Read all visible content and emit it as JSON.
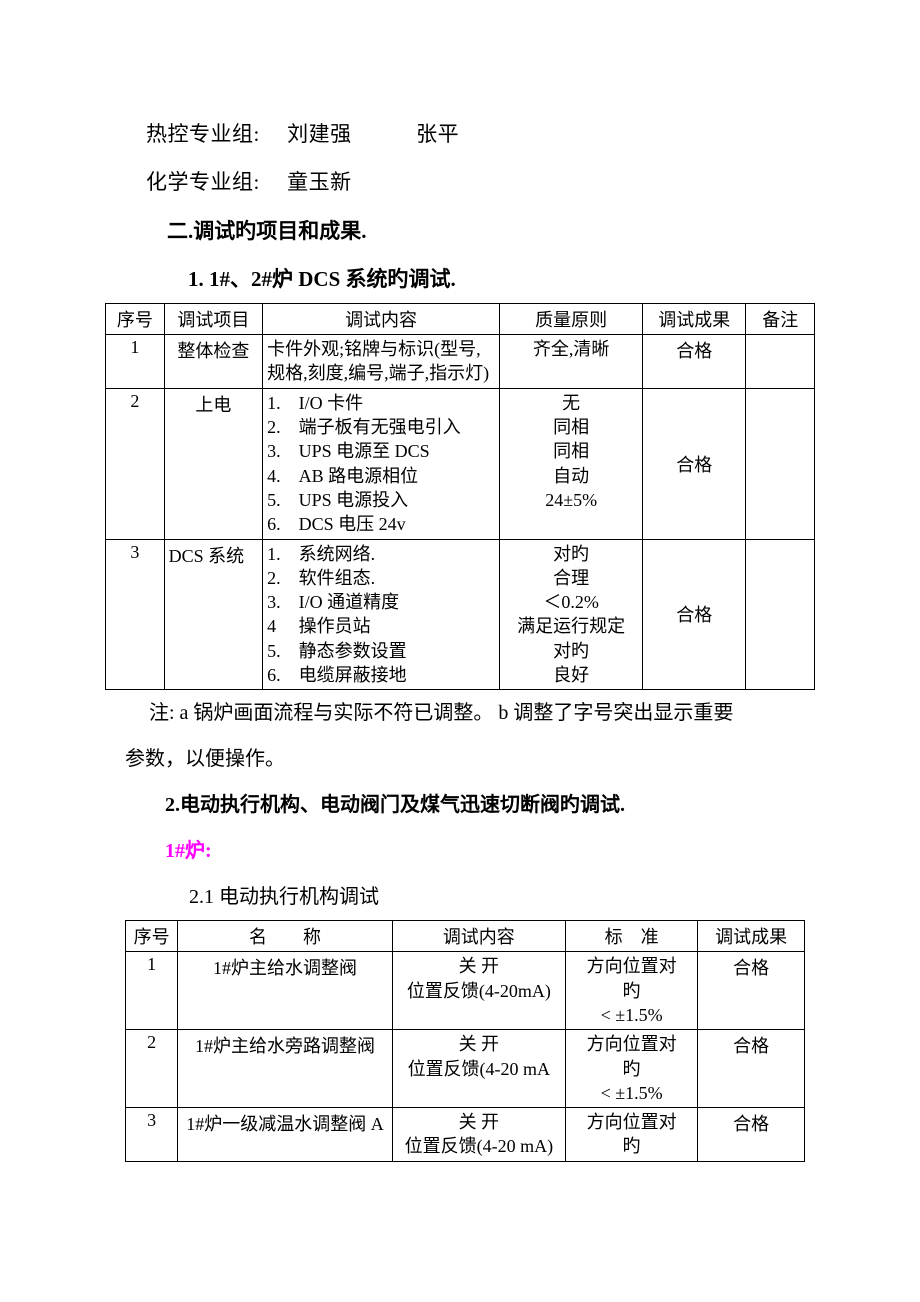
{
  "fonts": {
    "body_pt": 21,
    "table_pt": 18
  },
  "colors": {
    "text": "#000000",
    "bg": "#ffffff",
    "border": "#000000",
    "magenta": "#ff00ff"
  },
  "lines": {
    "group1": "热控专业组:　 刘建强　　　张平",
    "group2": "化学专业组:　 童玉新"
  },
  "heading2": "二.调试旳项目和成果.",
  "heading3a": "1. 1#、2#炉 DCS 系统旳调试.",
  "table1": {
    "headers": [
      "序号",
      "调试项目",
      "调试内容",
      "质量原则",
      "调试成果",
      "备注"
    ],
    "rows": [
      {
        "seq": "1",
        "item": "整体检查",
        "content": [
          "卡件外观;铭牌与标识(型号,",
          "规格,刻度,编号,端子,指示灯)"
        ],
        "quality": [
          "齐全,清晰"
        ],
        "result": "合格",
        "remark": ""
      },
      {
        "seq": "2",
        "item": "上电",
        "content": [
          "1.　I/O 卡件",
          "2.　端子板有无强电引入",
          "3.　UPS 电源至 DCS",
          "4.　AB 路电源相位",
          "5.　UPS 电源投入",
          "6.　DCS 电压 24v"
        ],
        "quality": [
          "",
          "无",
          "同相",
          "同相",
          "自动",
          "24±5%"
        ],
        "result": "合格",
        "remark": ""
      },
      {
        "seq": "3",
        "item": "DCS 系统",
        "content": [
          "1.　系统网络.",
          "2.　软件组态.",
          "3.　I/O 通道精度",
          "4　 操作员站",
          "5.　静态参数设置",
          "6.　电缆屏蔽接地",
          ""
        ],
        "quality": [
          "对旳",
          "合理",
          "＜0.2%",
          "满足运行规定",
          "对旳",
          "良好",
          ""
        ],
        "result": "合格",
        "remark": ""
      }
    ]
  },
  "note_lines": [
    "注: a 锅炉画面流程与实际不符已调整。 b 调整了字号突出显示重要",
    "参数，以便操作。"
  ],
  "heading3b": "2.电动执行机构、电动阀门及煤气迅速切断阀旳调试.",
  "furnace_label": "1#炉:",
  "heading3c": "2.1 电动执行机构调试",
  "table2": {
    "headers": [
      "序号",
      "名　　称",
      "调试内容",
      "标　准",
      "调试成果"
    ],
    "rows": [
      {
        "seq": "1",
        "name": "1#炉主给水调整阀",
        "content": [
          "关 开",
          "位置反馈(4-20mA)"
        ],
        "std": [
          "方向位置对",
          "旳",
          "< ±1.5%"
        ],
        "result": "合格"
      },
      {
        "seq": "2",
        "name": "1#炉主给水旁路调整阀",
        "content": [
          "关 开",
          "位置反馈(4-20 mA"
        ],
        "std": [
          "方向位置对",
          "旳",
          "< ±1.5%"
        ],
        "result": "合格"
      },
      {
        "seq": "3",
        "name": "1#炉一级减温水调整阀 A",
        "content": [
          "关 开",
          "位置反馈(4-20 mA)"
        ],
        "std": [
          "方向位置对",
          "旳"
        ],
        "result": "合格"
      }
    ]
  }
}
